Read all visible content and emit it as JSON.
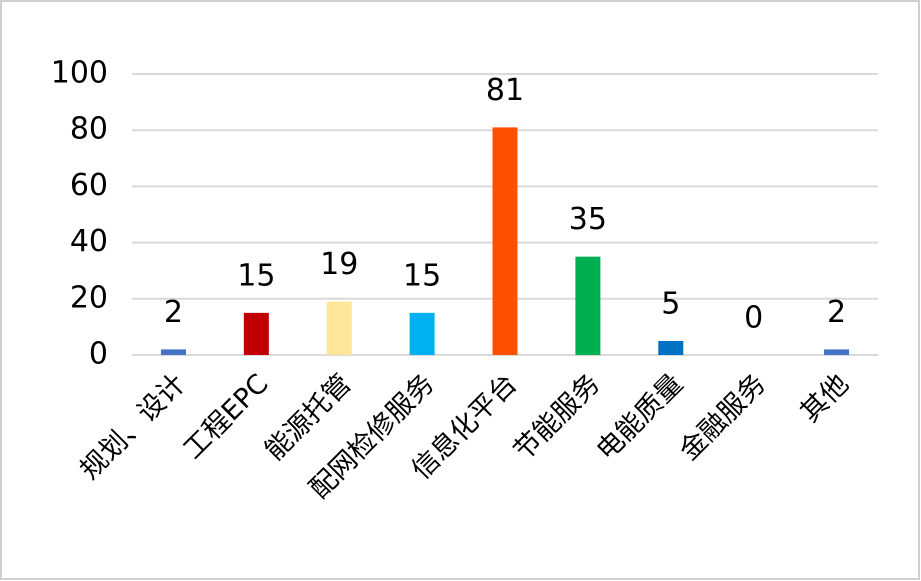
{
  "chart_data": {
    "type": "bar",
    "categories": [
      "规划、设计",
      "工程EPC",
      "能源托管",
      "配网检修服务",
      "信息化平台",
      "节能服务",
      "电能质量",
      "金融服务",
      "其他"
    ],
    "values": [
      2,
      15,
      19,
      15,
      81,
      35,
      5,
      0,
      2
    ],
    "colors": [
      "#4472c4",
      "#c00000",
      "#ffe699",
      "#00b0f0",
      "#ff5000",
      "#00b050",
      "#0070c0",
      "#7f7f7f",
      "#4472c4"
    ],
    "ylim": [
      0,
      100
    ],
    "yticks": [
      0,
      20,
      40,
      60,
      80,
      100
    ],
    "grid": true
  }
}
